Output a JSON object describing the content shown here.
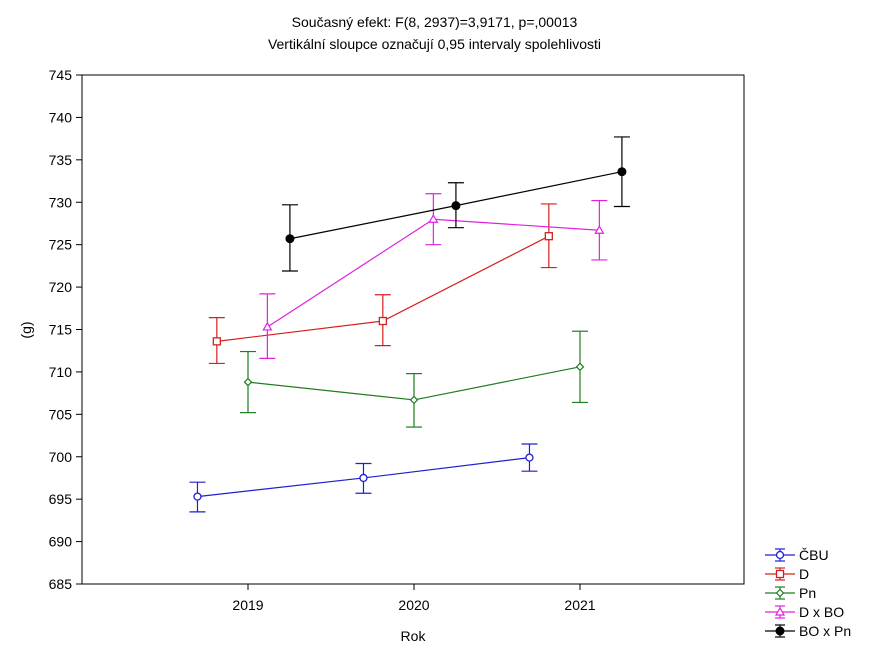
{
  "chart_data": {
    "type": "line",
    "title": "Současný efekt: F(8, 2937)=3,9171, p=,00013",
    "subtitle": "Vertikální sloupce označují 0,95 intervaly spolehlivosti",
    "xlabel": "Rok",
    "ylabel": "(g)",
    "categories": [
      "2019",
      "2020",
      "2021"
    ],
    "ylim": [
      685,
      745
    ],
    "yticks": [
      685,
      690,
      695,
      700,
      705,
      710,
      715,
      720,
      725,
      730,
      735,
      740,
      745
    ],
    "legend_position": "bottom-right",
    "series": [
      {
        "name": "ČBU",
        "color": "#1f1fcf",
        "marker": "circle-open",
        "values": [
          695.3,
          697.5,
          699.9
        ],
        "lower": [
          693.5,
          695.7,
          698.3
        ],
        "upper": [
          697.0,
          699.2,
          701.5
        ]
      },
      {
        "name": "D",
        "color": "#d42020",
        "marker": "square-open",
        "values": [
          713.6,
          716.0,
          726.0
        ],
        "lower": [
          711.0,
          713.1,
          722.3
        ],
        "upper": [
          716.4,
          719.1,
          729.8
        ]
      },
      {
        "name": "Pn",
        "color": "#1f7d1f",
        "marker": "diamond-open",
        "values": [
          708.8,
          706.7,
          710.6
        ],
        "lower": [
          705.2,
          703.5,
          706.4
        ],
        "upper": [
          712.4,
          709.8,
          714.8
        ]
      },
      {
        "name": "D x BO",
        "color": "#e020e0",
        "marker": "triangle-open",
        "values": [
          715.3,
          728.0,
          726.7
        ],
        "lower": [
          711.6,
          725.0,
          723.2
        ],
        "upper": [
          719.2,
          731.0,
          730.2
        ]
      },
      {
        "name": "BO x Pn",
        "color": "#000000",
        "marker": "circle-filled",
        "values": [
          725.7,
          729.6,
          733.6
        ],
        "lower": [
          721.9,
          727.0,
          729.5
        ],
        "upper": [
          729.7,
          732.3,
          737.7
        ]
      }
    ]
  }
}
